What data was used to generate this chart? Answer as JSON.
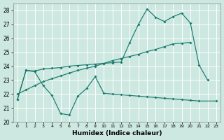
{
  "xlabel": "Humidex (Indice chaleur)",
  "bg_color": "#cce8e0",
  "line_color": "#1a7a6e",
  "grid_color": "#ffffff",
  "xlim_min": -0.5,
  "xlim_max": 23.5,
  "ylim_min": 20,
  "ylim_max": 28.5,
  "yticks": [
    20,
    21,
    22,
    23,
    24,
    25,
    26,
    27,
    28
  ],
  "xticks": [
    0,
    1,
    2,
    3,
    4,
    5,
    6,
    7,
    8,
    9,
    10,
    11,
    12,
    13,
    14,
    15,
    16,
    17,
    18,
    19,
    20,
    21,
    22,
    23
  ],
  "line1_x": [
    0,
    1,
    2,
    3,
    4,
    5,
    6,
    7,
    8,
    9,
    10,
    11,
    12,
    13,
    14,
    15,
    16,
    17,
    18,
    19,
    20,
    21,
    22
  ],
  "line1_y": [
    21.6,
    23.7,
    23.65,
    23.8,
    23.85,
    23.9,
    24.0,
    24.05,
    24.1,
    24.15,
    24.2,
    24.25,
    24.3,
    25.7,
    27.0,
    28.1,
    27.5,
    27.2,
    27.55,
    27.8,
    27.1,
    24.1,
    23.0
  ],
  "line2_x": [
    0,
    1,
    2,
    3,
    4,
    5,
    6,
    7,
    8,
    9,
    10,
    11,
    12,
    13,
    14,
    15,
    16,
    17,
    18,
    19,
    20
  ],
  "line2_y": [
    22.0,
    22.3,
    22.6,
    22.9,
    23.1,
    23.3,
    23.5,
    23.7,
    23.85,
    24.0,
    24.2,
    24.4,
    24.55,
    24.7,
    24.85,
    25.05,
    25.2,
    25.4,
    25.6,
    25.65,
    25.7
  ],
  "line3_x": [
    0,
    1,
    2,
    3,
    4,
    5,
    6,
    7,
    8,
    9,
    10,
    11,
    12,
    13,
    14,
    15,
    16,
    17,
    18,
    19,
    20,
    21,
    23
  ],
  "line3_y": [
    21.6,
    23.7,
    23.6,
    22.6,
    21.9,
    20.6,
    20.5,
    21.85,
    22.4,
    23.25,
    22.05,
    22.0,
    21.95,
    21.9,
    21.85,
    21.8,
    21.75,
    21.7,
    21.65,
    21.6,
    21.55,
    21.5,
    21.5
  ]
}
